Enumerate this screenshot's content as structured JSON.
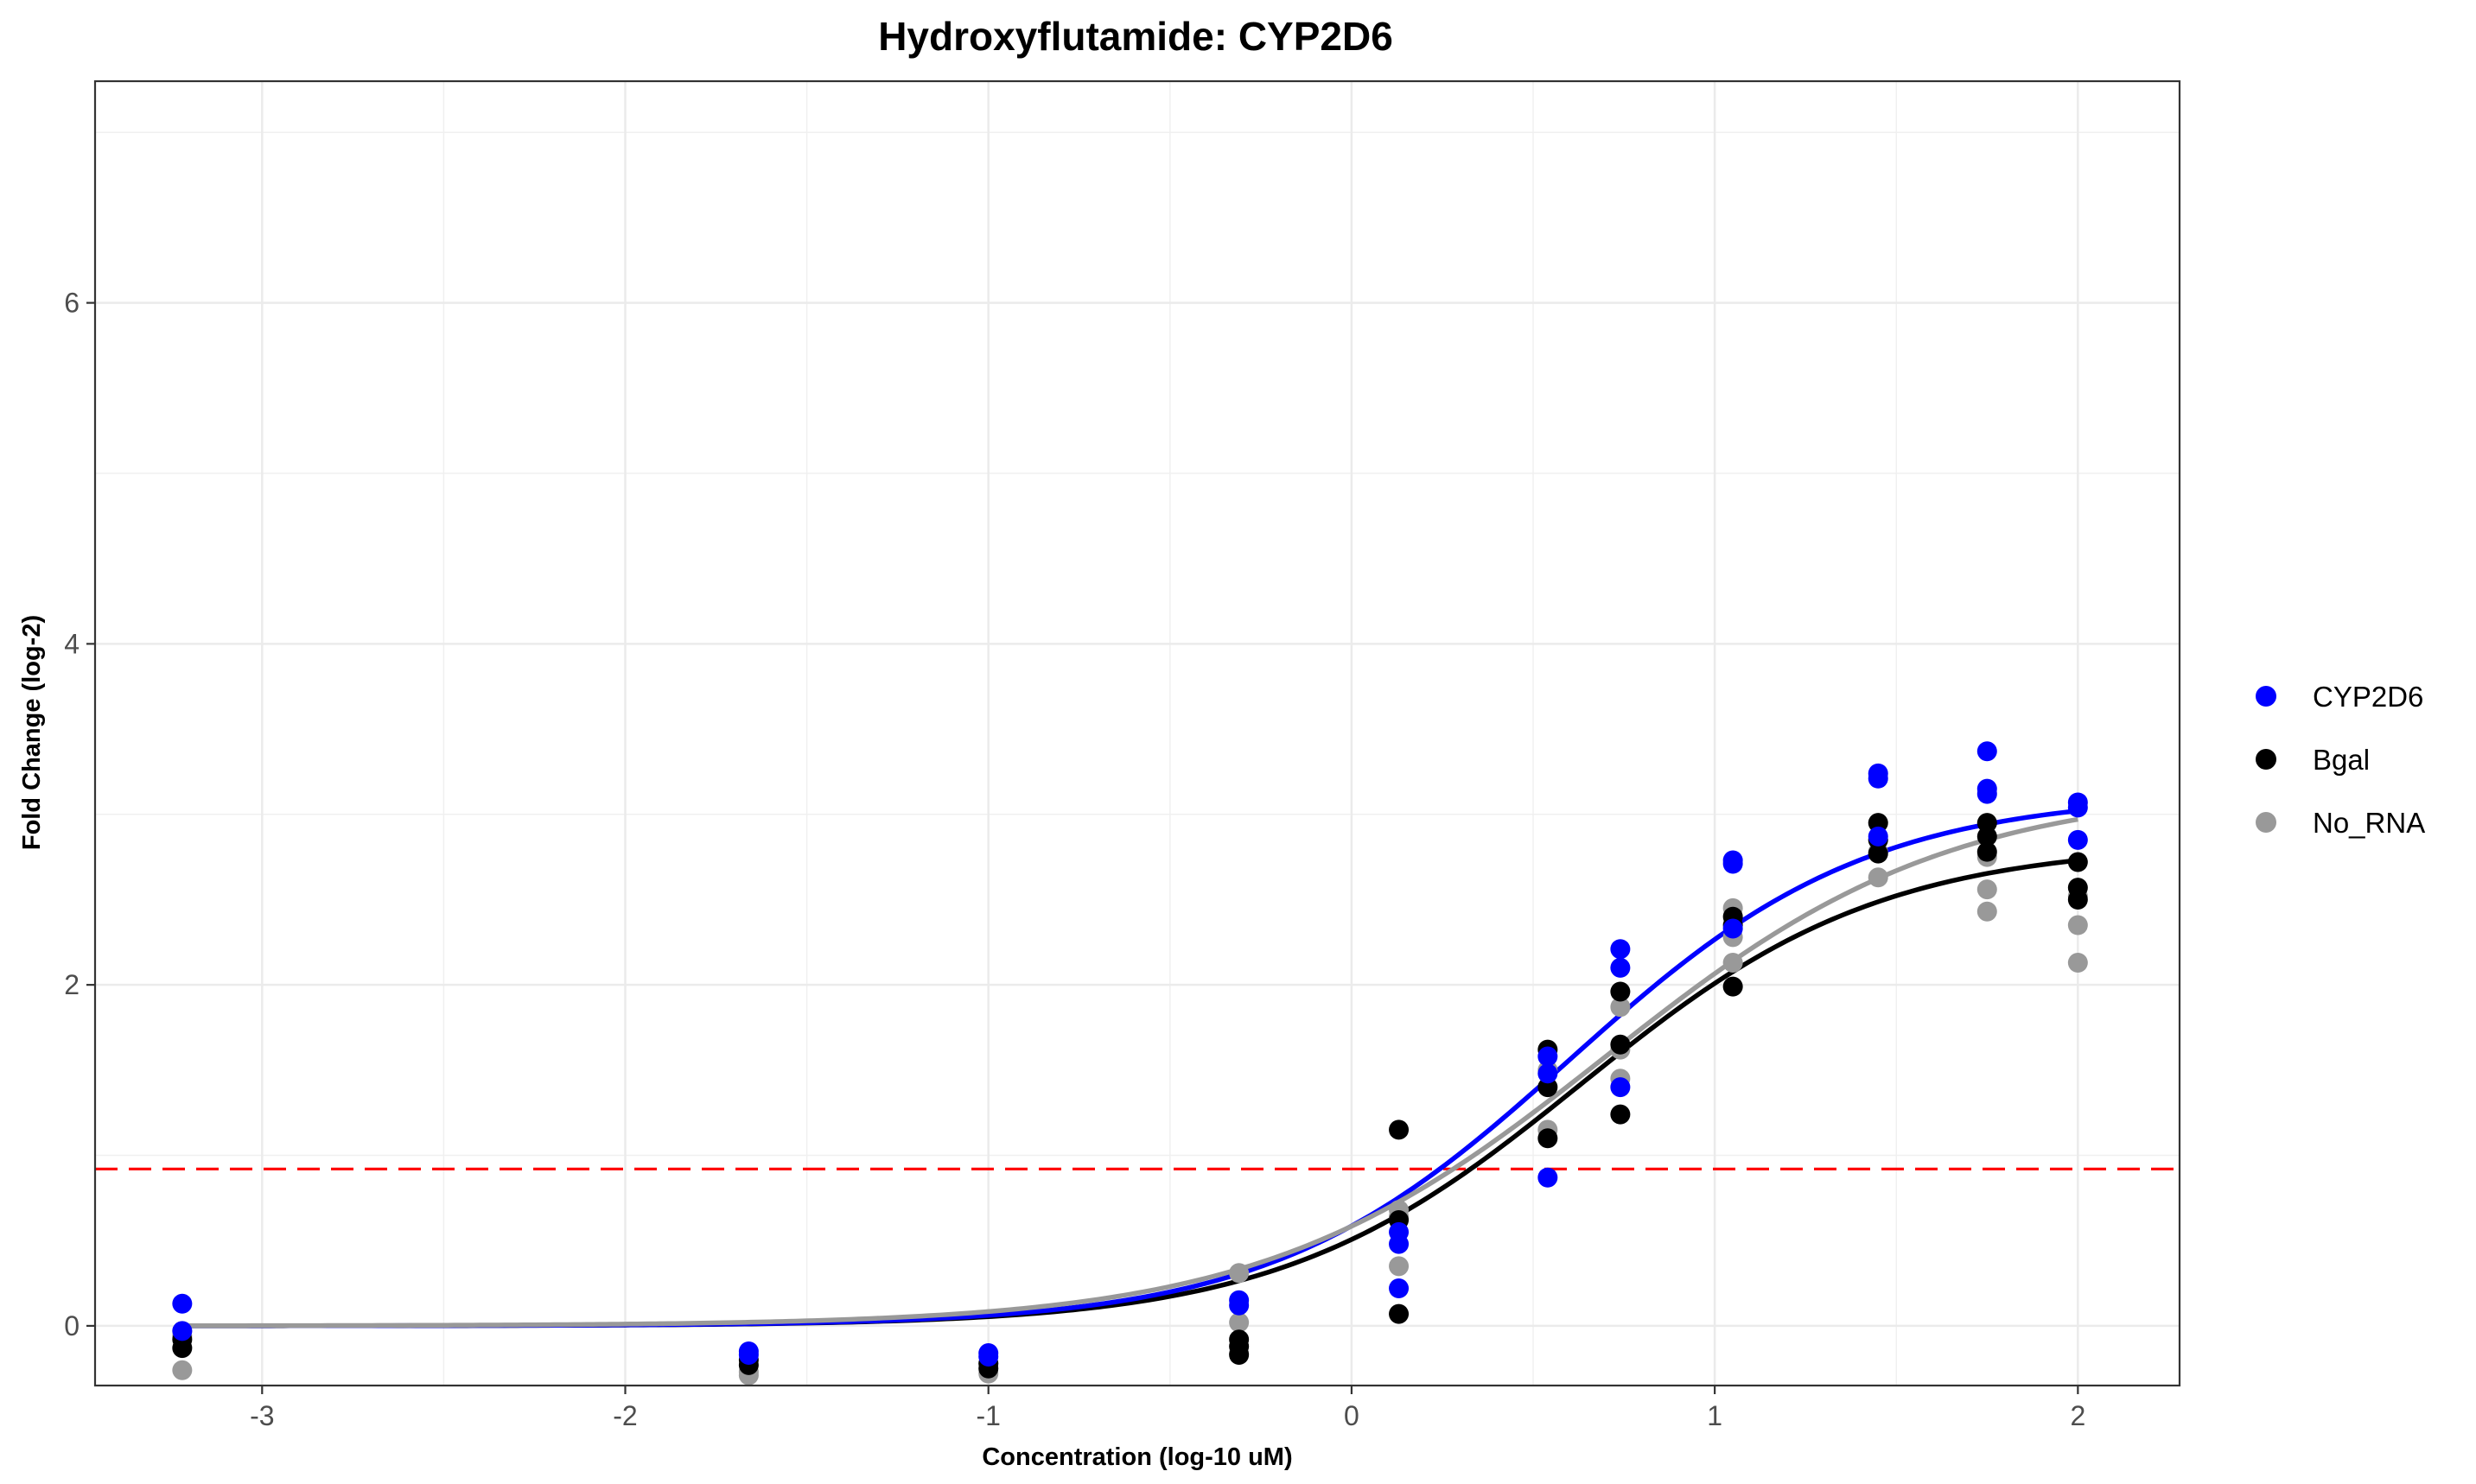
{
  "chart_data": {
    "type": "scatter",
    "title": "Hydroxyflutamide: CYP2D6",
    "xlabel": "Concentration (log-10 uM)",
    "ylabel": "Fold Change (log-2)",
    "xlim": [
      -3.46,
      2.28
    ],
    "ylim": [
      -0.35,
      7.3
    ],
    "x_ticks": [
      -3,
      -2,
      -1,
      0,
      1,
      2
    ],
    "x_tick_labels": [
      "-3",
      "-2",
      "-1",
      "0",
      "1",
      "2"
    ],
    "y_ticks": [
      0,
      2,
      4,
      6
    ],
    "y_tick_labels": [
      "0",
      "2",
      "4",
      "6"
    ],
    "grid": true,
    "legend_position": "right",
    "threshold": {
      "value": 0.92,
      "color": "#ff0000",
      "style": "dashed"
    },
    "series": [
      {
        "name": "CYP2D6",
        "color": "#0000ff",
        "points": [
          [
            -3.22,
            0.13
          ],
          [
            -3.22,
            -0.03
          ],
          [
            -1.66,
            -0.15
          ],
          [
            -1.66,
            -0.17
          ],
          [
            -1.0,
            -0.16
          ],
          [
            -1.0,
            -0.18
          ],
          [
            -0.31,
            0.15
          ],
          [
            -0.31,
            0.12
          ],
          [
            0.13,
            0.55
          ],
          [
            0.13,
            0.48
          ],
          [
            0.13,
            0.22
          ],
          [
            0.54,
            1.58
          ],
          [
            0.54,
            1.48
          ],
          [
            0.54,
            0.87
          ],
          [
            0.74,
            2.21
          ],
          [
            0.74,
            2.1
          ],
          [
            0.74,
            1.4
          ],
          [
            1.05,
            2.73
          ],
          [
            1.05,
            2.71
          ],
          [
            1.05,
            2.33
          ],
          [
            1.45,
            3.24
          ],
          [
            1.45,
            3.21
          ],
          [
            1.45,
            2.87
          ],
          [
            1.75,
            3.37
          ],
          [
            1.75,
            3.15
          ],
          [
            1.75,
            3.12
          ],
          [
            2.0,
            3.07
          ],
          [
            2.0,
            3.04
          ],
          [
            2.0,
            2.85
          ]
        ],
        "curve": {
          "bottom": 0.0,
          "top": 3.12,
          "ec50": 0.6,
          "hill": 1.06
        }
      },
      {
        "name": "Bgal",
        "color": "#000000",
        "points": [
          [
            -3.22,
            -0.13
          ],
          [
            -3.22,
            -0.08
          ],
          [
            -1.66,
            -0.2
          ],
          [
            -1.66,
            -0.23
          ],
          [
            -1.0,
            -0.22
          ],
          [
            -1.0,
            -0.25
          ],
          [
            -0.31,
            -0.08
          ],
          [
            -0.31,
            -0.12
          ],
          [
            -0.31,
            -0.17
          ],
          [
            0.13,
            1.15
          ],
          [
            0.13,
            0.62
          ],
          [
            0.13,
            0.07
          ],
          [
            0.54,
            1.62
          ],
          [
            0.54,
            1.4
          ],
          [
            0.54,
            1.1
          ],
          [
            0.74,
            1.96
          ],
          [
            0.74,
            1.65
          ],
          [
            0.74,
            1.24
          ],
          [
            1.05,
            2.4
          ],
          [
            1.05,
            2.35
          ],
          [
            1.05,
            1.99
          ],
          [
            1.45,
            2.95
          ],
          [
            1.45,
            2.85
          ],
          [
            1.45,
            2.77
          ],
          [
            1.75,
            2.95
          ],
          [
            1.75,
            2.87
          ],
          [
            1.75,
            2.78
          ],
          [
            2.0,
            2.72
          ],
          [
            2.0,
            2.57
          ],
          [
            2.0,
            2.5
          ]
        ],
        "curve": {
          "bottom": 0.0,
          "top": 2.83,
          "ec50": 0.63,
          "hill": 1.05
        }
      },
      {
        "name": "No_RNA",
        "color": "#999999",
        "points": [
          [
            -3.22,
            -0.03
          ],
          [
            -3.22,
            -0.06
          ],
          [
            -3.22,
            -0.26
          ],
          [
            -1.66,
            -0.29
          ],
          [
            -1.66,
            -0.27
          ],
          [
            -1.0,
            -0.22
          ],
          [
            -1.0,
            -0.28
          ],
          [
            -0.31,
            0.31
          ],
          [
            -0.31,
            0.02
          ],
          [
            -0.31,
            -0.16
          ],
          [
            0.13,
            0.68
          ],
          [
            0.13,
            0.64
          ],
          [
            0.13,
            0.35
          ],
          [
            0.54,
            1.5
          ],
          [
            0.54,
            1.15
          ],
          [
            0.74,
            1.87
          ],
          [
            0.74,
            1.62
          ],
          [
            0.74,
            1.45
          ],
          [
            1.05,
            2.45
          ],
          [
            1.05,
            2.28
          ],
          [
            1.05,
            2.13
          ],
          [
            1.45,
            2.85
          ],
          [
            1.45,
            2.78
          ],
          [
            1.45,
            2.63
          ],
          [
            1.75,
            2.75
          ],
          [
            1.75,
            2.56
          ],
          [
            1.75,
            2.43
          ],
          [
            2.0,
            2.52
          ],
          [
            2.0,
            2.35
          ],
          [
            2.0,
            2.13
          ]
        ],
        "curve": {
          "bottom": 0.0,
          "top": 3.16,
          "ec50": 0.7,
          "hill": 0.92
        }
      }
    ]
  }
}
